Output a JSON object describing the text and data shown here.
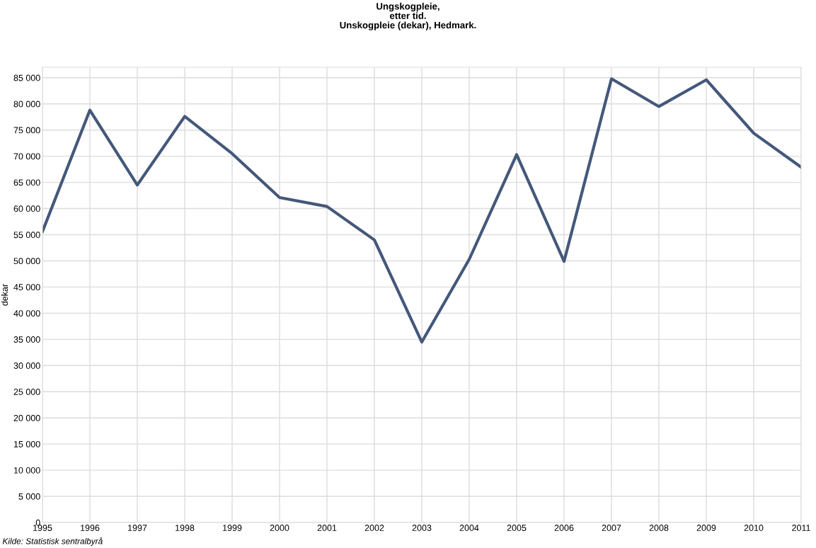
{
  "chart_data": {
    "type": "line",
    "title": "Ungskogpleie,\netter tid.\nUnskogpleie (dekar), Hedmark.",
    "ylabel": "dekar",
    "x": [
      1995,
      1996,
      1997,
      1998,
      1999,
      2000,
      2001,
      2002,
      2003,
      2004,
      2005,
      2006,
      2007,
      2008,
      2009,
      2010,
      2011
    ],
    "series": [
      {
        "color": "#44587a",
        "values": [
          55600,
          78800,
          64500,
          77600,
          70500,
          62100,
          60400,
          54000,
          34500,
          50300,
          70300,
          49900,
          84800,
          79500,
          84600,
          74400,
          67900
        ]
      }
    ],
    "xlim": [
      1995,
      2011
    ],
    "xticks": [
      1995,
      1996,
      1997,
      1998,
      1999,
      2000,
      2001,
      2002,
      2003,
      2004,
      2005,
      2006,
      2007,
      2008,
      2009,
      2010,
      2011
    ],
    "ylim": [
      0,
      87000
    ],
    "yticks": [
      0,
      {
        "value": 5000,
        "label": "5 000"
      },
      {
        "value": 10000,
        "label": "10 000"
      },
      {
        "value": 15000,
        "label": "15 000"
      },
      {
        "value": 20000,
        "label": "20 000"
      },
      {
        "value": 25000,
        "label": "25 000"
      },
      {
        "value": 30000,
        "label": "30 000"
      },
      {
        "value": 35000,
        "label": "35 000"
      },
      {
        "value": 40000,
        "label": "40 000"
      },
      {
        "value": 45000,
        "label": "45 000"
      },
      {
        "value": 50000,
        "label": "50 000"
      },
      {
        "value": 55000,
        "label": "55 000"
      },
      {
        "value": 60000,
        "label": "60 000"
      },
      {
        "value": 65000,
        "label": "65 000"
      },
      {
        "value": 70000,
        "label": "70 000"
      },
      {
        "value": 75000,
        "label": "75 000"
      },
      {
        "value": 80000,
        "label": "80 000"
      },
      {
        "value": 85000,
        "label": "85 000"
      }
    ],
    "grid": true,
    "legend": false,
    "marker": "none",
    "line_style": "solid",
    "annotations": [
      "Kilde: Statistisk sentralbyrå"
    ]
  }
}
